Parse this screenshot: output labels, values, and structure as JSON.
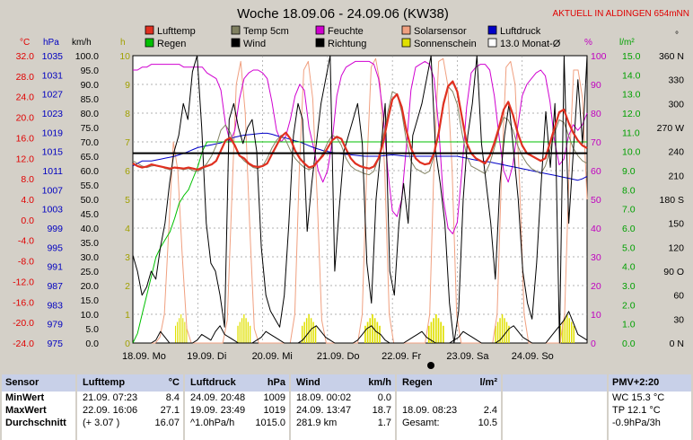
{
  "title": "Woche 18.09.06 - 24.09.06 (KW38)",
  "banner": "AKTUELL IN ALDINGEN 654mNN",
  "colors": {
    "lufttemp": "#e03020",
    "temp5cm": "#808060",
    "feuchte": "#d000d0",
    "solar": "#f0a080",
    "luftdruck": "#0000c8",
    "regen": "#00c000",
    "wind": "#000000",
    "richtung": "#000000",
    "sonnenschein": "#e0e000",
    "monat": "#ffffff"
  },
  "legend": [
    {
      "key": "lufttemp",
      "label": "Lufttemp"
    },
    {
      "key": "temp5cm",
      "label": "Temp 5cm"
    },
    {
      "key": "feuchte",
      "label": "Feuchte"
    },
    {
      "key": "solar",
      "label": "Solarsensor"
    },
    {
      "key": "luftdruck",
      "label": "Luftdruck"
    },
    {
      "key": "regen",
      "label": "Regen"
    },
    {
      "key": "wind",
      "label": "Wind"
    },
    {
      "key": "richtung",
      "label": "Richtung"
    },
    {
      "key": "sonnenschein",
      "label": "Sonnenschein"
    },
    {
      "key": "monat",
      "label": "13.0 Monat-Ø"
    }
  ],
  "axis_units": {
    "celsius": "°C",
    "hpa": "hPa",
    "kmh": "km/h",
    "h": "h",
    "pct": "%",
    "lm2": "l/m²",
    "deg": "°"
  },
  "chart_data": {
    "type": "line",
    "x_labels": [
      "18.09. Mo",
      "19.09. Di",
      "20.09. Mi",
      "21.09. Do",
      "22.09. Fr",
      "23.09. Sa",
      "24.09. So"
    ],
    "axes": {
      "celsius": {
        "ticks": [
          "32.0",
          "28.0",
          "24.0",
          "20.0",
          "16.0",
          "12.0",
          "8.0",
          "4.0",
          "0.0",
          "-4.0",
          "-8.0",
          "-12.0",
          "-16.0",
          "-20.0",
          "-24.0"
        ],
        "range": [
          -24,
          32
        ]
      },
      "hpa": {
        "ticks": [
          "1035",
          "1031",
          "1027",
          "1023",
          "1019",
          "1015",
          "1011",
          "1007",
          "1003",
          "999",
          "995",
          "991",
          "987",
          "983",
          "979",
          "975"
        ],
        "range": [
          975,
          1035
        ]
      },
      "kmh": {
        "ticks": [
          "100.0",
          "95.0",
          "90.0",
          "85.0",
          "80.0",
          "75.0",
          "70.0",
          "65.0",
          "60.0",
          "55.0",
          "50.0",
          "45.0",
          "40.0",
          "35.0",
          "30.0",
          "25.0",
          "20.0",
          "15.0",
          "10.0",
          "5.0",
          "0.0"
        ],
        "range": [
          0,
          100
        ]
      },
      "hours": {
        "ticks": [
          "10",
          "9",
          "8",
          "7",
          "6",
          "5",
          "4",
          "3",
          "2",
          "1",
          "0"
        ],
        "range": [
          0,
          10
        ]
      },
      "percent": {
        "ticks": [
          "100",
          "90",
          "80",
          "70",
          "60",
          "50",
          "40",
          "30",
          "20",
          "10",
          "0"
        ],
        "range": [
          0,
          100
        ]
      },
      "rain": {
        "ticks": [
          "15.0",
          "14.0",
          "13.0",
          "12.0",
          "11.0",
          "10.0",
          "9.0",
          "8.0",
          "7.0",
          "6.0",
          "5.0",
          "4.0",
          "3.0",
          "2.0",
          "1.0",
          "0.0"
        ],
        "range": [
          0,
          15
        ]
      },
      "direction": {
        "ticks": [
          "360 N",
          "330",
          "300",
          "270 W",
          "240",
          "210",
          "180 S",
          "150",
          "120",
          "90 O",
          "60",
          "30",
          "0 N"
        ],
        "range": [
          0,
          360
        ]
      }
    },
    "grid": true,
    "day_fraction_points": [
      0,
      0.08,
      0.17,
      0.25,
      0.33,
      0.42,
      0.5,
      0.58,
      0.67,
      0.75,
      0.83,
      0.92,
      1
    ],
    "series": [
      {
        "key": "lufttemp",
        "name": "Lufttemp",
        "axis": "celsius",
        "width": 2.2,
        "values": [
          11,
          10.5,
          10.2,
          10.4,
          10.8,
          10.6,
          10.4,
          10.2,
          10.0,
          10.2,
          10.1,
          10.0,
          10.2,
          10.0,
          9.8,
          10.2,
          10.5,
          10.8,
          11.5,
          13.5,
          15.5,
          16.0,
          14.5,
          12.5,
          12.0,
          11.0,
          10.5,
          10.3,
          10.5,
          11.0,
          12.8,
          14.5,
          16.2,
          17.0,
          15.8,
          13.5,
          12.0,
          11.0,
          10.2,
          10.5,
          11.5,
          12.5,
          14.0,
          15.5,
          16.2,
          15.8,
          13.8,
          12.0,
          11.0,
          10.5,
          10.2,
          10.0,
          10.4,
          12.0,
          15.0,
          19.5,
          23.5,
          24.5,
          22.0,
          17.5,
          14.0,
          12.0,
          11.2,
          10.8,
          11.0,
          13.0,
          17.0,
          22.5,
          26.0,
          27.0,
          25.0,
          20.0,
          15.0,
          13.0,
          12.0,
          11.5,
          11.0,
          12.5,
          15.0,
          18.0,
          21.5,
          23.0,
          20.5,
          17.0,
          14.5,
          13.0,
          12.5,
          12.0,
          11.5,
          12.0,
          15.0,
          18.0,
          21.0,
          21.5,
          19.0,
          17.0,
          15.5,
          14.5,
          14.0
        ]
      },
      {
        "key": "temp5cm",
        "name": "Temp 5cm",
        "axis": "celsius",
        "width": 1,
        "values": [
          11.5,
          11,
          10.5,
          10.2,
          10.5,
          10.6,
          10.4,
          10.0,
          9.8,
          10.2,
          10.0,
          9.8,
          10.0,
          9.6,
          9.4,
          10.0,
          11,
          12.5,
          14.5,
          17.5,
          18.5,
          17.0,
          14.5,
          12.5,
          11.5,
          10.8,
          10.2,
          10.0,
          10.5,
          12,
          14,
          15.5,
          16.5,
          15.5,
          13.5,
          12.0,
          11.0,
          10.2,
          9.8,
          10.2,
          11.5,
          13.0,
          15.0,
          16.5,
          16.0,
          14.5,
          12.0,
          10.5,
          9.8,
          9.4,
          9.0,
          8.8,
          9.5,
          12,
          16,
          21,
          25,
          24.5,
          21.0,
          15.5,
          11.5,
          10.0,
          9.5,
          9.0,
          9.5,
          12.5,
          17.5,
          23,
          26,
          25.0,
          22.5,
          17,
          12.5,
          10.5,
          10.0,
          9.5,
          9.0,
          11,
          14,
          17.5,
          20,
          19.5,
          17.5,
          14.5,
          12.5,
          11.0,
          10.0,
          9.5,
          9.0,
          10.5,
          13.5,
          17,
          19.5,
          19.0,
          16.5,
          14.0,
          12.5,
          11.5,
          11.0
        ]
      },
      {
        "key": "feuchte",
        "name": "Feuchte",
        "axis": "percent",
        "width": 1,
        "values": [
          95,
          95,
          96,
          96,
          97,
          97,
          97,
          97,
          97,
          97,
          97,
          96,
          96,
          96,
          96,
          96,
          94,
          93,
          92,
          88,
          76,
          70,
          74,
          85,
          92,
          94,
          95,
          95,
          94,
          92,
          84,
          74,
          70,
          72,
          78,
          86,
          90,
          88,
          75,
          68,
          60,
          56,
          60,
          70,
          86,
          93,
          96,
          97,
          98,
          98,
          98,
          98,
          97,
          92,
          80,
          60,
          46,
          44,
          50,
          68,
          88,
          96,
          97,
          98,
          97,
          92,
          75,
          50,
          40,
          38,
          42,
          60,
          82,
          94,
          96,
          97,
          97,
          95,
          86,
          72,
          60,
          56,
          62,
          75,
          86,
          90,
          92,
          94,
          95,
          93,
          84,
          70,
          62,
          64,
          72,
          76,
          74,
          76,
          80
        ]
      },
      {
        "key": "luftdruck",
        "name": "Luftdruck",
        "axis": "hpa",
        "width": 1,
        "values": [
          1012,
          1012.5,
          1013,
          1013,
          1013,
          1013.2,
          1013.4,
          1013.6,
          1013.8,
          1014,
          1014.3,
          1014.6,
          1015,
          1015.4,
          1015.8,
          1016,
          1016.2,
          1016.4,
          1016.6,
          1016.8,
          1017.2,
          1017.6,
          1018,
          1018.2,
          1018.4,
          1018.5,
          1018.6,
          1018.7,
          1018.8,
          1018.8,
          1018.6,
          1018.3,
          1018,
          1017.8,
          1017.5,
          1017.2,
          1017,
          1016.6,
          1016.2,
          1015.8,
          1015.5,
          1015.2,
          1015,
          1014.8,
          1014.6,
          1014.5,
          1014.4,
          1014.3,
          1014.2,
          1014.1,
          1014,
          1014,
          1014,
          1014,
          1014.1,
          1014.2,
          1014.3,
          1014.2,
          1014.1,
          1014,
          1014,
          1014,
          1014,
          1014,
          1014,
          1014,
          1014,
          1014,
          1014,
          1014,
          1014,
          1013.8,
          1013.6,
          1013.4,
          1013.2,
          1013,
          1012.9,
          1012.8,
          1012.6,
          1012.4,
          1012.2,
          1012,
          1011.8,
          1011.6,
          1011.4,
          1011.2,
          1011,
          1010.8,
          1010.6,
          1010.4,
          1010.2,
          1010,
          1009.8,
          1009.6,
          1009.4,
          1009.2,
          1009,
          1009.3,
          1009.8
        ]
      },
      {
        "key": "regen",
        "name": "Regen",
        "axis": "rain",
        "width": 1,
        "values": [
          0,
          0.5,
          1.5,
          2.5,
          3.5,
          4.5,
          5.0,
          5.4,
          5.8,
          6.5,
          7.3,
          7.7,
          8.0,
          8.6,
          9.2,
          10.0,
          10.5,
          10.5,
          10.5,
          10.5,
          10.5,
          10.5,
          10.5,
          10.5,
          10.5,
          10.5,
          10.5,
          10.5,
          10.5,
          10.5,
          10.5,
          10.5,
          10.5,
          10.5,
          10.5,
          10.5,
          10.5,
          10.5,
          10.5,
          10.5,
          10.5,
          10.5,
          10.5,
          10.5,
          10.5,
          10.5,
          10.5,
          10.5,
          10.5,
          10.5,
          10.5,
          10.5,
          10.5,
          10.5,
          10.5,
          10.5,
          10.5,
          10.5,
          10.5,
          10.5,
          10.5,
          10.5,
          10.5,
          10.5,
          10.5,
          10.5,
          10.5,
          10.5,
          10.5,
          10.5,
          10.5,
          10.5,
          10.5,
          10.5,
          10.5,
          10.5,
          10.5,
          10.5,
          10.5,
          10.5,
          10.5,
          10.5,
          10.5,
          10.5,
          10.5,
          10.5,
          10.5,
          10.5,
          10.5,
          10.5,
          10.5,
          10.5,
          10.5,
          10.5,
          10.5,
          10.5,
          10.5,
          10.5,
          10.5
        ]
      },
      {
        "key": "wind",
        "name": "Wind",
        "axis": "kmh",
        "width": 1,
        "values": [
          0,
          0,
          0,
          0,
          0,
          1,
          4,
          2,
          0,
          0,
          0,
          0,
          0,
          0,
          1,
          3,
          2,
          1,
          4,
          6,
          3,
          2,
          1,
          0,
          0,
          0,
          0,
          1,
          2,
          4,
          3,
          2,
          1,
          0,
          0,
          0,
          0,
          1,
          3,
          5,
          6,
          4,
          2,
          1,
          0,
          0,
          0,
          0,
          0,
          1,
          3,
          5,
          6,
          4,
          3,
          1,
          0,
          0,
          0,
          0,
          1,
          2,
          3,
          4,
          2,
          1,
          0,
          0,
          0,
          0,
          1,
          2,
          4,
          3,
          2,
          1,
          0,
          0,
          0,
          0,
          1,
          3,
          5,
          6,
          4,
          2,
          1,
          0,
          0,
          0,
          0,
          2,
          4,
          6,
          8,
          11,
          7,
          3,
          2,
          1
        ]
      },
      {
        "key": "richtung",
        "name": "Richtung",
        "axis": "direction",
        "width": 1,
        "values": [
          110,
          90,
          60,
          70,
          90,
          80,
          120,
          150,
          200,
          240,
          260,
          300,
          280,
          340,
          360,
          270,
          150,
          100,
          90,
          60,
          20,
          280,
          300,
          270,
          250,
          270,
          280,
          240,
          120,
          60,
          40,
          30,
          20,
          60,
          150,
          260,
          300,
          280,
          140,
          200,
          250,
          300,
          330,
          360,
          90,
          170,
          240,
          260,
          280,
          300,
          250,
          100,
          50,
          180,
          240,
          300,
          90,
          60,
          150,
          200,
          150,
          260,
          280,
          300,
          330,
          360,
          240,
          200,
          150,
          50,
          0,
          40,
          180,
          260,
          300,
          360,
          250,
          200,
          150,
          80,
          200,
          260,
          300,
          240,
          180,
          90,
          50,
          30,
          100,
          200,
          290,
          220,
          300,
          0,
          360,
          150,
          240,
          330,
          250,
          360
        ]
      },
      {
        "key": "solar",
        "name": "Solarsensor",
        "axis": "percent",
        "width": 1,
        "values": [
          0,
          0,
          0,
          0,
          0,
          0,
          2,
          10,
          40,
          70,
          60,
          30,
          5,
          0,
          0,
          0,
          0,
          0,
          0,
          0,
          0,
          8,
          50,
          90,
          98,
          80,
          40,
          5,
          0,
          0,
          0,
          0,
          0,
          0,
          0,
          0,
          10,
          60,
          95,
          98,
          85,
          50,
          8,
          0,
          0,
          0,
          0,
          0,
          0,
          0,
          0,
          10,
          60,
          96,
          99,
          90,
          60,
          10,
          0,
          0,
          0,
          0,
          0,
          0,
          0,
          0,
          10,
          65,
          98,
          99,
          90,
          60,
          10,
          0,
          0,
          0,
          0,
          0,
          0,
          0,
          0,
          10,
          60,
          96,
          98,
          90,
          55,
          10,
          0,
          0,
          0,
          0,
          0,
          0,
          0,
          0,
          10,
          60,
          95,
          95,
          85,
          50
        ]
      }
    ],
    "monthly_avg_celsius": 13.0,
    "sunshine_bars": [
      {
        "day": 0,
        "center": 0.75,
        "width": 0.2,
        "height": 1.0
      },
      {
        "day": 1,
        "center": 0.72,
        "width": 0.22,
        "height": 1.0
      },
      {
        "day": 2,
        "center": 0.72,
        "width": 0.24,
        "height": 1.0
      },
      {
        "day": 3,
        "center": 0.7,
        "width": 0.26,
        "height": 1.0
      },
      {
        "day": 4,
        "center": 0.68,
        "width": 0.26,
        "height": 1.0
      },
      {
        "day": 5,
        "center": 0.7,
        "width": 0.24,
        "height": 1.0
      },
      {
        "day": 6,
        "center": 0.7,
        "width": 0.24,
        "height": 1.0
      }
    ]
  },
  "table": {
    "sensor": {
      "header": "Sensor",
      "rows": [
        "MinWert",
        "MaxWert",
        "Durchschnitt"
      ]
    },
    "lufttemp": {
      "header": "Lufttemp",
      "unit": "°C",
      "rows": [
        [
          "21.09.  07:23",
          "8.4"
        ],
        [
          "22.09.  16:06",
          "27.1"
        ],
        [
          "(+ 3.07 )",
          "16.07"
        ]
      ]
    },
    "luftdruck": {
      "header": "Luftdruck",
      "unit": "hPa",
      "rows": [
        [
          "24.09.  20:48",
          "1009"
        ],
        [
          "19.09.  23:49",
          "1019"
        ],
        [
          "^1.0hPa/h",
          "1015.0"
        ]
      ]
    },
    "wind": {
      "header": "Wind",
      "unit": "km/h",
      "rows": [
        [
          "18.09.  00:02",
          "0.0"
        ],
        [
          "24.09.  13:47",
          "18.7"
        ],
        [
          "281.9 km",
          "1.7"
        ]
      ]
    },
    "regen": {
      "header": "Regen",
      "unit": "l/m²",
      "rows": [
        [
          "",
          ""
        ],
        [
          "18.09.  08:23",
          "2.4"
        ],
        [
          "Gesamt:",
          "10.5"
        ]
      ]
    },
    "pmv": {
      "header": "PMV+2:20",
      "rows": [
        "WC 15.3 °C",
        "TP 12.1 °C",
        "-0.9hPa/3h"
      ]
    }
  }
}
